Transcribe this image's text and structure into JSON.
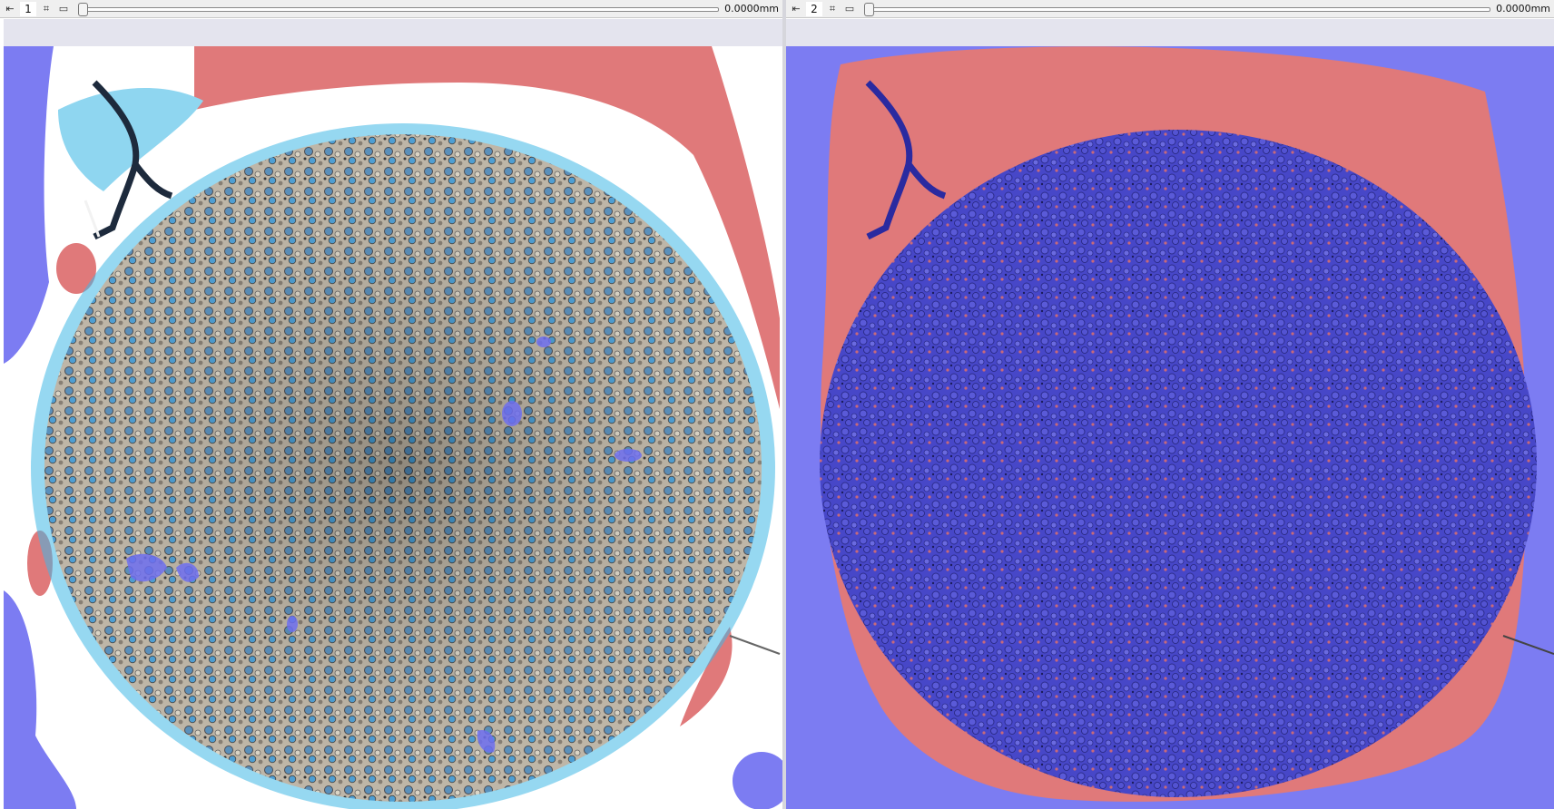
{
  "views": [
    {
      "number": "1",
      "offset": "0.0000mm",
      "icons": [
        "link-toggle-icon",
        "pin-icon",
        "maximize-icon"
      ],
      "slider_value": 0
    },
    {
      "number": "2",
      "offset": "0.0000mm",
      "icons": [
        "link-toggle-icon",
        "pin-icon",
        "maximize-icon"
      ],
      "slider_value": 0
    }
  ],
  "colors": {
    "toolbar_bg": "#efefef",
    "spacer_bg": "#e4e4ee",
    "segment_red": "#e0797a",
    "segment_blue": "#7c7cf2",
    "segment_cyan": "#3fb8e6",
    "tissue_light": "#c9c2b4",
    "tissue_dark": "#5a5a6a"
  }
}
